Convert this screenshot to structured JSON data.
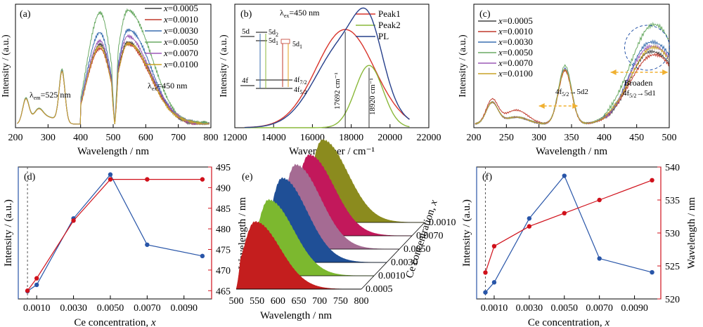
{
  "chart_data": [
    {
      "panel": "(a)",
      "type": "line",
      "xlabel": "Wavelength / nm",
      "ylabel": "Intensity / (a.u.)",
      "xlim": [
        200,
        800
      ],
      "xticks": [
        "200",
        "300",
        "400",
        "500",
        "600",
        "700",
        "800"
      ],
      "legend_prefix": "x",
      "legend_placement": "top-right",
      "annotations": [
        "λem=525 nm",
        "λex=450 nm"
      ],
      "series": [
        {
          "name": "=0.0005",
          "color": "#404040",
          "peak": 0.72
        },
        {
          "name": "=0.0010",
          "color": "#c0392b",
          "peak": 0.69
        },
        {
          "name": "=0.0030",
          "color": "#3a6fb0",
          "peak": 0.82
        },
        {
          "name": "=0.0050",
          "color": "#6aaa64",
          "peak": 1.0
        },
        {
          "name": "=0.0070",
          "color": "#9b59b6",
          "peak": 0.76
        },
        {
          "name": "=0.0100",
          "color": "#c9a227",
          "peak": 0.7
        }
      ]
    },
    {
      "panel": "(b)",
      "type": "line",
      "xlabel": "Wavenumber / cm⁻¹",
      "ylabel": "Intensity / (a.u.)",
      "xlim": [
        12000,
        22000
      ],
      "xticks": [
        "12000",
        "14000",
        "16000",
        "18000",
        "20000",
        "22000"
      ],
      "legend_placement": "top-right",
      "annotations": [
        "λex=450 nm",
        "17692 cm⁻¹",
        "18920 cm⁻¹"
      ],
      "level_labels": [
        "5d",
        "5d2",
        "5d1",
        "5d1",
        "4f",
        "4f7/2",
        "4f5/2"
      ],
      "series": [
        {
          "name": "Peak1",
          "color": "#d9342b",
          "center": 17692,
          "amplitude": 0.82,
          "width": 1500
        },
        {
          "name": "Peak2",
          "color": "#8ab83a",
          "center": 18920,
          "amplitude": 0.52,
          "width": 720
        },
        {
          "name": "PL",
          "color": "#27408b",
          "center": 18300,
          "amplitude": 1.0,
          "width": 1500
        }
      ]
    },
    {
      "panel": "(c)",
      "type": "line",
      "xlabel": "Wavelength / nm",
      "ylabel": "Intensity / (a.u.)",
      "xlim": [
        200,
        500
      ],
      "xticks": [
        "200",
        "250",
        "300",
        "350",
        "400",
        "450",
        "500"
      ],
      "legend_prefix": "x",
      "legend_placement": "top-left",
      "annotations": [
        "4f5/2→5d2",
        "Broaden",
        "4f5/2→5d1"
      ],
      "series": [
        {
          "name": "=0.0005",
          "color": "#404040",
          "peak": 0.74
        },
        {
          "name": "=0.0010",
          "color": "#c0392b",
          "peak": 0.7
        },
        {
          "name": "=0.0030",
          "color": "#3a6fb0",
          "peak": 0.84
        },
        {
          "name": "=0.0050",
          "color": "#6aaa64",
          "peak": 1.0
        },
        {
          "name": "=0.0070",
          "color": "#9b59b6",
          "peak": 0.8
        },
        {
          "name": "=0.0100",
          "color": "#c9a227",
          "peak": 0.77
        }
      ]
    },
    {
      "panel": "(d)",
      "type": "line",
      "xlabel": "Ce concentration, ",
      "xlabel_var": "x",
      "ylabel": "Intensity / (a.u.)",
      "y2label": "Wavelength / nm",
      "xlim": [
        0,
        0.0105
      ],
      "xticks": [
        "0.0010",
        "0.0030",
        "0.0050",
        "0.0070",
        "0.0090"
      ],
      "y2lim": [
        463,
        495
      ],
      "y2ticks": [
        "465",
        "470",
        "475",
        "480",
        "485",
        "490",
        "495"
      ],
      "x": [
        0.0005,
        0.001,
        0.003,
        0.005,
        0.007,
        0.01
      ],
      "series": [
        {
          "name": "Intensity",
          "color": "#2855a8",
          "values": [
            0.04,
            0.09,
            0.62,
            0.97,
            0.41,
            0.32
          ]
        },
        {
          "name": "Wavelength",
          "color": "#d0111b",
          "values": [
            465,
            468,
            482,
            492,
            492,
            492
          ]
        }
      ]
    },
    {
      "panel": "(e)",
      "type": "area",
      "xlabel": "Wavelength / nm",
      "ylabel": "Ce concentration, ",
      "ylabel_var": "x",
      "xlim": [
        500,
        800
      ],
      "xticks": [
        "500",
        "550",
        "600",
        "650",
        "700",
        "750",
        "800"
      ],
      "series": [
        {
          "name": "0.0005",
          "color": "#c41e1e",
          "peak": 0.8
        },
        {
          "name": "0.0010",
          "color": "#7cb82f",
          "peak": 0.9
        },
        {
          "name": "0.0030",
          "color": "#1f4f96",
          "peak": 1.0
        },
        {
          "name": "0.0050",
          "color": "#a56b93",
          "peak": 1.0
        },
        {
          "name": "0.0070",
          "color": "#c2185b",
          "peak": 0.96
        },
        {
          "name": "0.0010",
          "color": "#8b8b1e",
          "peak": 0.98
        }
      ]
    },
    {
      "panel": "(f)",
      "type": "line",
      "xlabel": "Ce concentration, ",
      "xlabel_var": "x",
      "ylabel": "Intensity / (a.u.)",
      "y2label": "Wavelength / nm",
      "xlim": [
        0,
        0.0105
      ],
      "xticks": [
        "0.0010",
        "0.0030",
        "0.0050",
        "0.0070",
        "0.0090"
      ],
      "y2lim": [
        520,
        540
      ],
      "y2ticks": [
        "520",
        "525",
        "530",
        "535",
        "540"
      ],
      "x": [
        0.0005,
        0.001,
        0.003,
        0.005,
        0.007,
        0.01
      ],
      "series": [
        {
          "name": "Intensity",
          "color": "#2855a8",
          "values": [
            0.03,
            0.11,
            0.62,
            0.96,
            0.3,
            0.19
          ]
        },
        {
          "name": "Wavelength",
          "color": "#d0111b",
          "values": [
            524,
            528,
            531,
            533,
            535,
            538
          ]
        }
      ]
    }
  ]
}
